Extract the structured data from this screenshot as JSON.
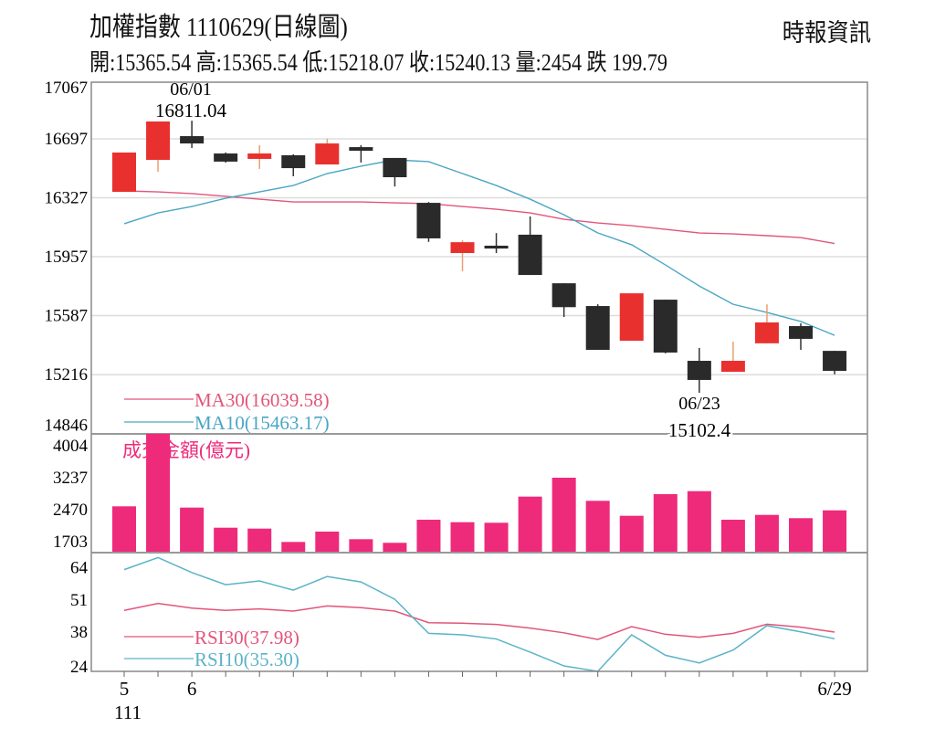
{
  "header": {
    "title": "加權指數 1110629(日線圖)",
    "source": "時報資訊",
    "ohlc": "開:15365.54 高:15365.54 低:15218.07 收:15240.13 量:2454 跌 199.79"
  },
  "colors": {
    "up": "#e8312f",
    "down": "#2a2a2a",
    "ma30": "#e2557a",
    "ma10": "#4aa6c4",
    "volume": "#ee2a7b",
    "rsi30": "#e2557a",
    "rsi10": "#5ab3c8",
    "grid": "#dddddd"
  },
  "chart_data": [
    {
      "type": "candlestick",
      "yticks": [
        17067,
        16697,
        16327,
        15957,
        15587,
        15216,
        14846
      ],
      "annotations": [
        {
          "date": "06/01",
          "value": "16811.04"
        },
        {
          "date": "06/23",
          "value": "15102.4"
        }
      ],
      "candles": [
        {
          "o": 16364,
          "h": 16611,
          "l": 16364,
          "c": 16611
        },
        {
          "o": 16565,
          "h": 16806,
          "l": 16490,
          "c": 16806
        },
        {
          "o": 16714,
          "h": 16811.04,
          "l": 16640,
          "c": 16668
        },
        {
          "o": 16605,
          "h": 16611,
          "l": 16548,
          "c": 16554
        },
        {
          "o": 16571,
          "h": 16657,
          "l": 16508,
          "c": 16605
        },
        {
          "o": 16594,
          "h": 16600,
          "l": 16462,
          "c": 16513
        },
        {
          "o": 16536,
          "h": 16697,
          "l": 16536,
          "c": 16668
        },
        {
          "o": 16645,
          "h": 16657,
          "l": 16548,
          "c": 16622
        },
        {
          "o": 16577,
          "h": 16577,
          "l": 16398,
          "c": 16456
        },
        {
          "o": 16295,
          "h": 16300,
          "l": 16050,
          "c": 16072
        },
        {
          "o": 15980,
          "h": 16060,
          "l": 15865,
          "c": 16048
        },
        {
          "o": 16026,
          "h": 16105,
          "l": 15980,
          "c": 16008
        },
        {
          "o": 16095,
          "h": 16210,
          "l": 15842,
          "c": 15842
        },
        {
          "o": 15790,
          "h": 15790,
          "l": 15578,
          "c": 15640
        },
        {
          "o": 15647,
          "h": 15658,
          "l": 15372,
          "c": 15372
        },
        {
          "o": 15429,
          "h": 15727,
          "l": 15429,
          "c": 15727
        },
        {
          "o": 15687,
          "h": 15687,
          "l": 15350,
          "c": 15355
        },
        {
          "o": 15303,
          "h": 15384,
          "l": 15102.4,
          "c": 15183
        },
        {
          "o": 15234,
          "h": 15424,
          "l": 15234,
          "c": 15303
        },
        {
          "o": 15413,
          "h": 15658,
          "l": 15413,
          "c": 15544
        },
        {
          "o": 15521,
          "h": 15538,
          "l": 15372,
          "c": 15441
        },
        {
          "o": 15365.54,
          "h": 15365.54,
          "l": 15218.07,
          "c": 15240.13
        }
      ],
      "series": [
        {
          "name": "MA30(16039.58)",
          "values": [
            16370,
            16364,
            16353,
            16336,
            16318,
            16301,
            16301,
            16301,
            16295,
            16290,
            16272,
            16255,
            16232,
            16192,
            16169,
            16152,
            16129,
            16106,
            16100,
            16089,
            16077,
            16039.58
          ]
        },
        {
          "name": "MA10(15463.17)",
          "values": [
            16164,
            16232,
            16272,
            16324,
            16364,
            16404,
            16479,
            16525,
            16565,
            16554,
            16479,
            16404,
            16318,
            16220,
            16106,
            16032,
            15905,
            15773,
            15658,
            15607,
            15550,
            15463.17
          ]
        }
      ]
    },
    {
      "type": "bar",
      "title": "成交金額(億元)",
      "yticks": [
        4004,
        3237,
        2470,
        1703
      ],
      "values": [
        2550,
        4290,
        2520,
        2038,
        2016,
        1696,
        1944,
        1762,
        1675,
        2229,
        2170,
        2156,
        2783,
        3236,
        2682,
        2323,
        2842,
        2914,
        2229,
        2345,
        2266,
        2454
      ]
    },
    {
      "type": "line",
      "yticks": [
        64,
        51,
        38,
        24
      ],
      "series": [
        {
          "name": "RSI30(37.98)",
          "values": [
            46.8,
            49.6,
            47.7,
            46.8,
            47.4,
            46.5,
            48.6,
            47.9,
            46.5,
            41.8,
            41.6,
            41.1,
            39.6,
            37.7,
            35.0,
            40.2,
            37.1,
            35.9,
            37.5,
            41.2,
            40.0,
            37.98
          ]
        },
        {
          "name": "RSI10(35.30)",
          "values": [
            63.3,
            68.2,
            62.1,
            57.2,
            58.7,
            55.0,
            60.5,
            58.3,
            51.3,
            37.5,
            36.9,
            35.2,
            29.9,
            24.3,
            19.4,
            36.9,
            28.6,
            25.5,
            30.7,
            40.6,
            38.1,
            35.3
          ]
        }
      ],
      "xtick_labels": [
        {
          "index": 0,
          "label": "5",
          "sub": "111"
        },
        {
          "index": 2,
          "label": "6"
        },
        {
          "index": 21,
          "label": "6/29"
        }
      ]
    }
  ]
}
